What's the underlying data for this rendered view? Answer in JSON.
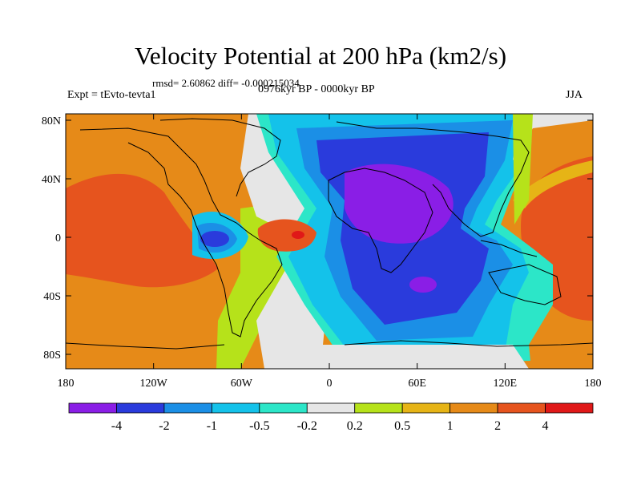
{
  "title": "Velocity Potential at 200 hPa (km2/s)",
  "stats": "rmsd= 2.60862 diff= -0.000215034",
  "experiment": "Expt = tEvto-tevta1",
  "period": "0976kyr BP - 0000kyr BP",
  "season": "JJA",
  "axes": {
    "x_ticks": [
      "180",
      "120W",
      "60W",
      "0",
      "60E",
      "120E",
      "180"
    ],
    "y_ticks": [
      "80N",
      "40N",
      "0",
      "40S",
      "80S"
    ]
  },
  "colorbar": {
    "labels": [
      "-4",
      "-2",
      "-1",
      "-0.5",
      "-0.2",
      "0.2",
      "0.5",
      "1",
      "2",
      "4"
    ],
    "colors": [
      "#8a1ee6",
      "#2a3bdc",
      "#1b8fe6",
      "#14c2ea",
      "#2ce6c8",
      "#e6e6e6",
      "#b6e21a",
      "#e6b416",
      "#e68a18",
      "#e6541e",
      "#e01818"
    ]
  }
}
